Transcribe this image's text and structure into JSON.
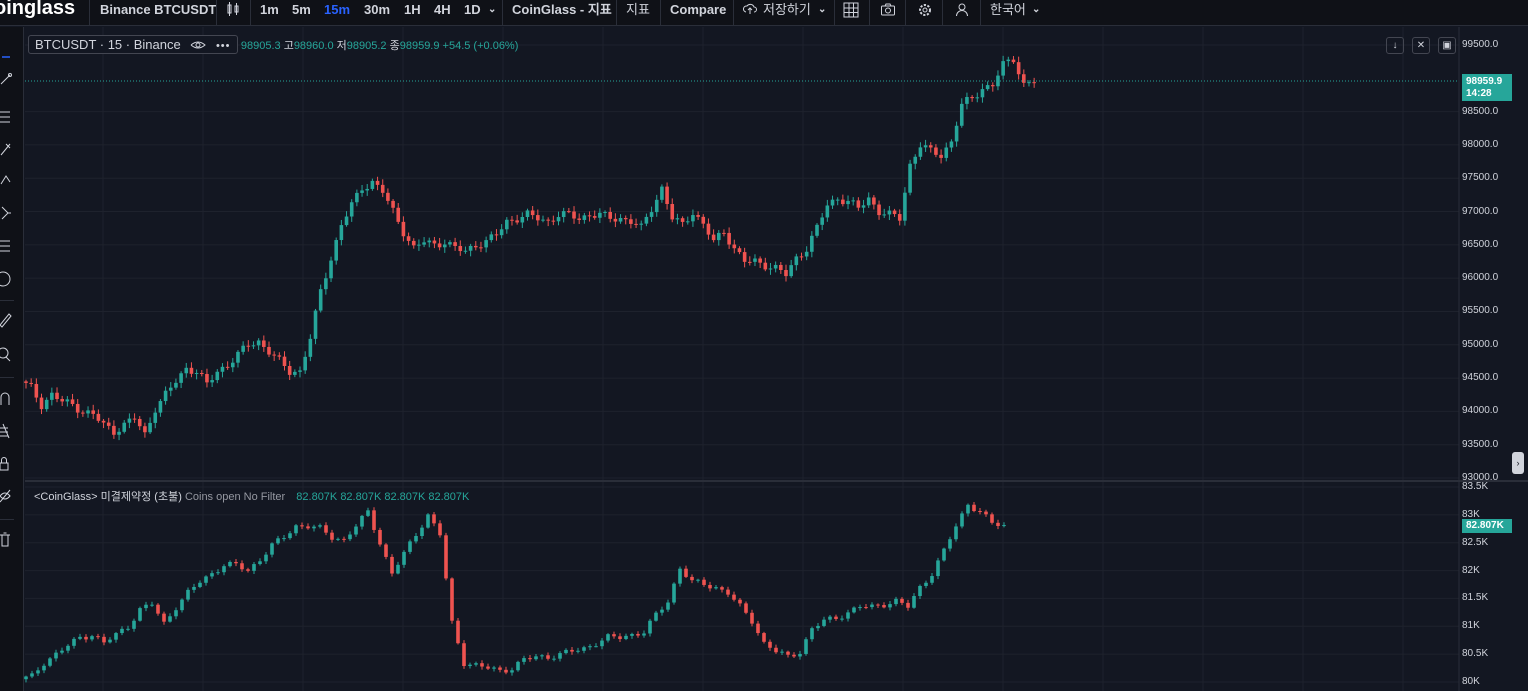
{
  "topbar": {
    "logo": "oinglass",
    "symbol": "Binance BTCUSDT",
    "intervals": [
      "1m",
      "5m",
      "15m",
      "30m",
      "1H",
      "4H",
      "1D"
    ],
    "active_interval": "15m",
    "coinglass_indicators": "CoinGlass - 지표",
    "indicators": "지표",
    "compare": "Compare",
    "save": "저장하기",
    "language": "한국어"
  },
  "legend": {
    "title": "BTCUSDT · 15 · Binance",
    "open_value": "98905.3",
    "high_label": "고",
    "high_value": "98960.0",
    "low_label": "저",
    "low_value": "98905.2",
    "close_label": "종",
    "close_value": "98959.9",
    "change": "+54.5 (+0.06%)"
  },
  "oi_legend": {
    "name": "<CoinGlass> 미결제약정 (초불)",
    "params": "Coins open No Filter",
    "values": "82.807K 82.807K 82.807K 82.807K"
  },
  "price_axis": {
    "ticks": [
      "99500.0",
      "98500.0",
      "98000.0",
      "97500.0",
      "97000.0",
      "96500.0",
      "96000.0",
      "95500.0",
      "95000.0",
      "94500.0",
      "94000.0",
      "93500.0",
      "93000.0"
    ],
    "last_price": "98959.9",
    "countdown": "14:28"
  },
  "oi_axis": {
    "ticks": [
      "83.5K",
      "83K",
      "82.5K",
      "82K",
      "81.5K",
      "81K",
      "80.5K",
      "80K"
    ],
    "last_value": "82.807K"
  },
  "colors": {
    "up": "#26a69a",
    "down": "#ef5350",
    "background": "#131722",
    "grid": "#1e222d",
    "active": "#2962ff"
  },
  "chart_data": [
    {
      "type": "candlestick",
      "symbol": "BTCUSDT",
      "interval": "15",
      "ylim": [
        93000,
        99500
      ],
      "close_path": [
        94450,
        94350,
        94100,
        94250,
        94150,
        94100,
        94000,
        93950,
        93800,
        93700,
        93800,
        93900,
        93650,
        94050,
        94250,
        94450,
        94650,
        94600,
        94400,
        94600,
        94700,
        94850,
        95000,
        95050,
        94900,
        94750,
        94600,
        94600,
        95100,
        95800,
        96300,
        96800,
        97100,
        97350,
        97450,
        97300,
        97000,
        96700,
        96450,
        96550,
        96500,
        96550,
        96450,
        96400,
        96500,
        96550,
        96650,
        96850,
        96900,
        96950,
        96900,
        96850,
        96950,
        96950,
        96900,
        96950,
        96950,
        96900,
        96900,
        96850,
        96750,
        97050,
        97350,
        96900,
        96800,
        97000,
        96800,
        96550,
        96700,
        96450,
        96250,
        96250,
        96200,
        96150,
        96050,
        96300,
        96450,
        96750,
        97100,
        97200,
        97150,
        97050,
        97200,
        97000,
        96950,
        96900,
        97700,
        98000,
        97900,
        97850,
        98050,
        98600,
        98700,
        98850,
        98900,
        99200,
        99300,
        98905,
        98960
      ]
    },
    {
      "type": "candlestick",
      "name": "미결제약정",
      "unit": "K",
      "ylim": [
        80000,
        83500
      ],
      "close_path": [
        80050,
        80100,
        80350,
        80500,
        80650,
        80800,
        80850,
        80700,
        80850,
        81000,
        81300,
        81400,
        81050,
        81350,
        81600,
        81800,
        81950,
        82100,
        82100,
        82000,
        82200,
        82450,
        82600,
        82800,
        82800,
        82750,
        82600,
        82550,
        82800,
        83050,
        82500,
        81950,
        82300,
        82650,
        83000,
        82650,
        81050,
        80350,
        80300,
        80250,
        80200,
        80250,
        80400,
        80450,
        80450,
        80500,
        80550,
        80600,
        80700,
        80800,
        80800,
        80850,
        80900,
        81200,
        81450,
        82050,
        81800,
        81750,
        81700,
        81600,
        81350,
        81100,
        80700,
        80550,
        80450,
        80550,
        80950,
        81100,
        81150,
        81250,
        81350,
        81350,
        81400,
        81450,
        81350,
        81700,
        81950,
        82350,
        82800,
        83200,
        83050,
        82850,
        82807
      ]
    }
  ]
}
